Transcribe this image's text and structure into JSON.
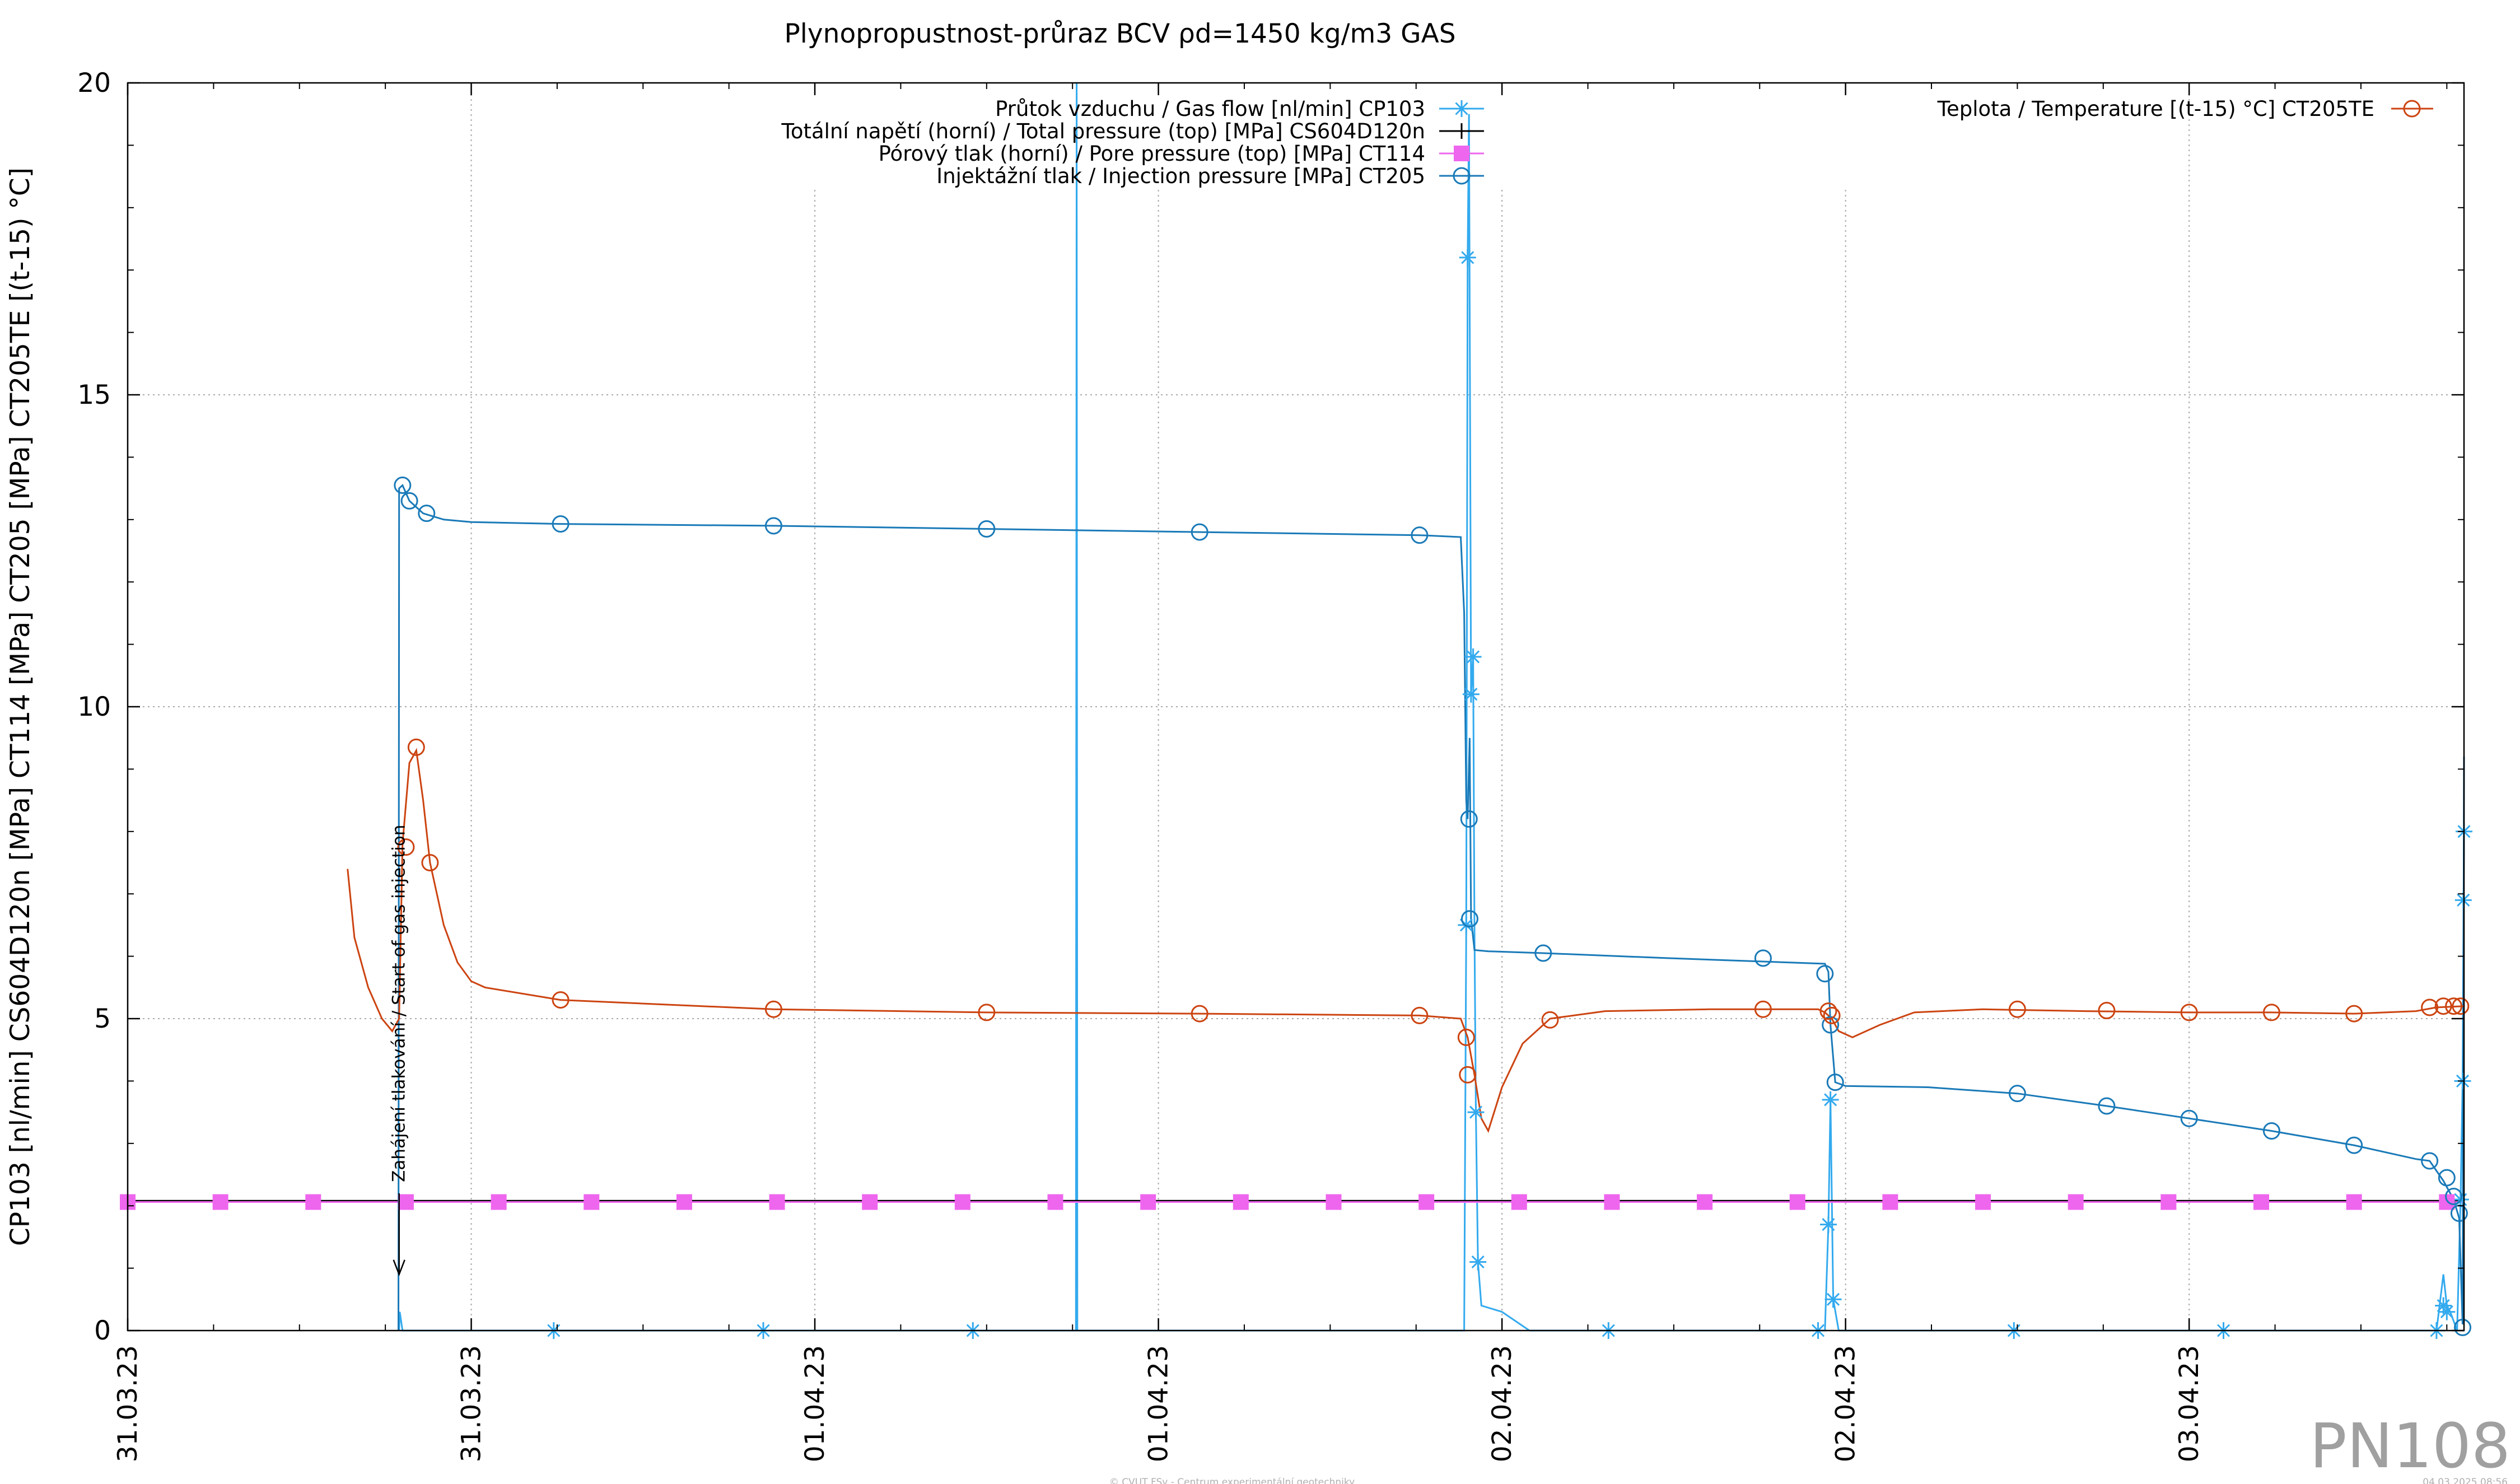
{
  "page": {
    "stamp": "PN108",
    "footer_left": "© CVUT FSv - Centrum experimentální geotechniky",
    "footer_right": "04.03.2025 08:56"
  },
  "chart_data": {
    "type": "line",
    "title": "Plynopropustnost-průraz BCV ρd=1450 kg/m3 GAS",
    "ylabel": "CP103 [nl/min] CS604D120n [MPa] CT114 [MPa] CT205 [MPa] CT205TE [(t-15) °C]",
    "xlabel": "",
    "ylim": [
      0,
      20
    ],
    "yticks": [
      0,
      5,
      10,
      15,
      20
    ],
    "xlim": [
      0,
      3.4
    ],
    "x_unit": "days from 31.03.23 00:00 (tick labels show dates)",
    "xticks": [
      {
        "x": 0.0,
        "label": "31.03.23"
      },
      {
        "x": 0.5,
        "label": "31.03.23"
      },
      {
        "x": 1.0,
        "label": "01.04.23"
      },
      {
        "x": 1.5,
        "label": "01.04.23"
      },
      {
        "x": 2.0,
        "label": "02.04.23"
      },
      {
        "x": 2.5,
        "label": "02.04.23"
      },
      {
        "x": 3.0,
        "label": "03.04.23"
      }
    ],
    "grid": true,
    "legend_left_position": "top-center",
    "legend_right_position": "top-right",
    "annotation": {
      "text": "Zahájení tlakování / Start of gas injection",
      "x": 0.395,
      "y_from": 2.2,
      "y_to": 0.9
    },
    "series": [
      {
        "name": "Průtok vzduchu / Gas flow [nl/min] CP103",
        "color": "#33aaee",
        "marker": "asterisk",
        "legend": "left",
        "points": [
          [
            0.395,
            0.0
          ],
          [
            0.396,
            0.3
          ],
          [
            0.4,
            0.0
          ],
          [
            1.38,
            0.0
          ],
          [
            1.381,
            20
          ],
          [
            1.382,
            0.0
          ],
          [
            1.945,
            0.0
          ],
          [
            1.948,
            6.5
          ],
          [
            1.95,
            17.2
          ],
          [
            1.952,
            19.5
          ],
          [
            1.955,
            10.2
          ],
          [
            1.958,
            10.8
          ],
          [
            1.96,
            6.4
          ],
          [
            1.962,
            3.5
          ],
          [
            1.965,
            1.1
          ],
          [
            1.97,
            0.4
          ],
          [
            2.0,
            0.3
          ],
          [
            2.04,
            0.0
          ],
          [
            2.47,
            0.0
          ],
          [
            2.475,
            1.7
          ],
          [
            2.478,
            3.7
          ],
          [
            2.482,
            0.5
          ],
          [
            2.49,
            0.0
          ],
          [
            3.36,
            0.0
          ],
          [
            3.37,
            0.9
          ],
          [
            3.375,
            0.4
          ],
          [
            3.38,
            0.3
          ],
          [
            3.39,
            0.0
          ],
          [
            3.395,
            2.1
          ],
          [
            3.398,
            4.0
          ],
          [
            3.4,
            8.0
          ]
        ],
        "markers": [
          [
            0.62,
            0.0
          ],
          [
            0.925,
            0.0
          ],
          [
            1.23,
            0.0
          ],
          [
            1.948,
            6.5
          ],
          [
            1.95,
            17.2
          ],
          [
            1.955,
            10.2
          ],
          [
            1.958,
            10.8
          ],
          [
            1.962,
            3.5
          ],
          [
            1.965,
            1.1
          ],
          [
            2.155,
            0.0
          ],
          [
            2.46,
            0.0
          ],
          [
            2.475,
            1.7
          ],
          [
            2.478,
            3.7
          ],
          [
            2.482,
            0.5
          ],
          [
            2.745,
            0.0
          ],
          [
            3.05,
            0.0
          ],
          [
            3.36,
            0.0
          ],
          [
            3.37,
            0.4
          ],
          [
            3.375,
            0.3
          ],
          [
            3.395,
            2.1
          ],
          [
            3.398,
            4.0
          ],
          [
            3.399,
            6.9
          ],
          [
            3.4,
            8.0
          ]
        ]
      },
      {
        "name": "Totální napětí (horní) / Total pressure (top) [MPa] CS604D120n",
        "color": "#000000",
        "marker": "plus",
        "legend": "left",
        "points": [
          [
            0.0,
            2.08
          ],
          [
            3.4,
            2.08
          ]
        ],
        "markers": []
      },
      {
        "name": "Pórový tlak (horní) / Pore pressure (top) [MPa] CT114",
        "color": "#ee66ee",
        "marker": "square",
        "legend": "left",
        "points": [
          [
            0.0,
            2.06
          ],
          [
            3.4,
            2.06
          ]
        ],
        "markers": [
          [
            0.0,
            2.06
          ],
          [
            0.135,
            2.06
          ],
          [
            0.27,
            2.06
          ],
          [
            0.405,
            2.06
          ],
          [
            0.54,
            2.06
          ],
          [
            0.675,
            2.06
          ],
          [
            0.81,
            2.06
          ],
          [
            0.945,
            2.06
          ],
          [
            1.08,
            2.06
          ],
          [
            1.215,
            2.06
          ],
          [
            1.35,
            2.06
          ],
          [
            1.485,
            2.06
          ],
          [
            1.62,
            2.06
          ],
          [
            1.755,
            2.06
          ],
          [
            1.89,
            2.06
          ],
          [
            2.025,
            2.06
          ],
          [
            2.16,
            2.06
          ],
          [
            2.295,
            2.06
          ],
          [
            2.43,
            2.06
          ],
          [
            2.565,
            2.06
          ],
          [
            2.7,
            2.06
          ],
          [
            2.835,
            2.06
          ],
          [
            2.97,
            2.06
          ],
          [
            3.105,
            2.06
          ],
          [
            3.24,
            2.06
          ],
          [
            3.375,
            2.06
          ]
        ]
      },
      {
        "name": "Injektážní tlak / Injection pressure [MPa] CT205",
        "color": "#1a7ab8",
        "marker": "circle",
        "legend": "left",
        "points": [
          [
            0.394,
            0.0
          ],
          [
            0.395,
            13.5
          ],
          [
            0.4,
            13.55
          ],
          [
            0.41,
            13.3
          ],
          [
            0.43,
            13.1
          ],
          [
            0.46,
            13.0
          ],
          [
            0.5,
            12.96
          ],
          [
            0.63,
            12.93
          ],
          [
            0.94,
            12.9
          ],
          [
            1.25,
            12.85
          ],
          [
            1.56,
            12.8
          ],
          [
            1.88,
            12.75
          ],
          [
            1.94,
            12.72
          ],
          [
            1.945,
            11.5
          ],
          [
            1.948,
            8.5
          ],
          [
            1.95,
            8.2
          ],
          [
            1.953,
            9.5
          ],
          [
            1.955,
            6.6
          ],
          [
            1.96,
            6.1
          ],
          [
            1.98,
            6.08
          ],
          [
            2.06,
            6.05
          ],
          [
            2.24,
            5.97
          ],
          [
            2.47,
            5.88
          ],
          [
            2.475,
            5.75
          ],
          [
            2.478,
            4.9
          ],
          [
            2.485,
            3.98
          ],
          [
            2.5,
            3.92
          ],
          [
            2.62,
            3.9
          ],
          [
            2.75,
            3.8
          ],
          [
            2.88,
            3.6
          ],
          [
            3.0,
            3.4
          ],
          [
            3.12,
            3.2
          ],
          [
            3.24,
            2.97
          ],
          [
            3.33,
            2.75
          ],
          [
            3.35,
            2.72
          ],
          [
            3.37,
            2.4
          ],
          [
            3.385,
            2.1
          ],
          [
            3.393,
            1.8
          ],
          [
            3.398,
            0.1
          ],
          [
            3.4,
            9.2
          ]
        ],
        "markers": [
          [
            0.4,
            13.55
          ],
          [
            0.41,
            13.3
          ],
          [
            0.435,
            13.1
          ],
          [
            0.63,
            12.93
          ],
          [
            0.94,
            12.9
          ],
          [
            1.25,
            12.85
          ],
          [
            1.56,
            12.8
          ],
          [
            1.88,
            12.75
          ],
          [
            1.952,
            8.2
          ],
          [
            1.953,
            6.6
          ],
          [
            2.06,
            6.05
          ],
          [
            2.38,
            5.97
          ],
          [
            2.47,
            5.72
          ],
          [
            2.478,
            4.9
          ],
          [
            2.485,
            3.98
          ],
          [
            2.75,
            3.8
          ],
          [
            2.88,
            3.6
          ],
          [
            3.0,
            3.4
          ],
          [
            3.12,
            3.2
          ],
          [
            3.24,
            2.97
          ],
          [
            3.35,
            2.72
          ],
          [
            3.375,
            2.45
          ],
          [
            3.385,
            2.15
          ],
          [
            3.393,
            1.88
          ],
          [
            3.398,
            0.05
          ]
        ]
      },
      {
        "name": "Teplota / Temperature [(t-15) °C] CT205TE",
        "color": "#cc4411",
        "marker": "circle",
        "legend": "right",
        "points": [
          [
            0.32,
            7.4
          ],
          [
            0.33,
            6.3
          ],
          [
            0.35,
            5.5
          ],
          [
            0.37,
            5.0
          ],
          [
            0.385,
            4.8
          ],
          [
            0.395,
            5.0
          ],
          [
            0.4,
            7.8
          ],
          [
            0.41,
            9.1
          ],
          [
            0.42,
            9.3
          ],
          [
            0.43,
            8.5
          ],
          [
            0.44,
            7.5
          ],
          [
            0.46,
            6.5
          ],
          [
            0.48,
            5.9
          ],
          [
            0.5,
            5.6
          ],
          [
            0.52,
            5.5
          ],
          [
            0.63,
            5.3
          ],
          [
            0.94,
            5.15
          ],
          [
            1.25,
            5.1
          ],
          [
            1.56,
            5.08
          ],
          [
            1.88,
            5.05
          ],
          [
            1.94,
            5.0
          ],
          [
            1.95,
            4.7
          ],
          [
            1.96,
            4.1
          ],
          [
            1.97,
            3.4
          ],
          [
            1.98,
            3.2
          ],
          [
            2.0,
            3.9
          ],
          [
            2.03,
            4.6
          ],
          [
            2.07,
            5.0
          ],
          [
            2.15,
            5.12
          ],
          [
            2.3,
            5.15
          ],
          [
            2.46,
            5.15
          ],
          [
            2.47,
            5.1
          ],
          [
            2.48,
            5.0
          ],
          [
            2.49,
            4.8
          ],
          [
            2.51,
            4.7
          ],
          [
            2.55,
            4.9
          ],
          [
            2.6,
            5.1
          ],
          [
            2.7,
            5.15
          ],
          [
            2.85,
            5.12
          ],
          [
            3.0,
            5.1
          ],
          [
            3.12,
            5.1
          ],
          [
            3.24,
            5.08
          ],
          [
            3.33,
            5.12
          ],
          [
            3.36,
            5.18
          ],
          [
            3.4,
            5.2
          ]
        ],
        "markers": [
          [
            0.405,
            7.75
          ],
          [
            0.42,
            9.35
          ],
          [
            0.44,
            7.5
          ],
          [
            0.63,
            5.3
          ],
          [
            0.94,
            5.15
          ],
          [
            1.25,
            5.1
          ],
          [
            1.56,
            5.08
          ],
          [
            1.88,
            5.05
          ],
          [
            1.948,
            4.7
          ],
          [
            1.95,
            4.1
          ],
          [
            2.07,
            4.98
          ],
          [
            2.38,
            5.15
          ],
          [
            2.475,
            5.12
          ],
          [
            2.48,
            5.05
          ],
          [
            2.75,
            5.15
          ],
          [
            2.88,
            5.13
          ],
          [
            3.0,
            5.1
          ],
          [
            3.12,
            5.1
          ],
          [
            3.24,
            5.08
          ],
          [
            3.35,
            5.18
          ],
          [
            3.37,
            5.2
          ],
          [
            3.385,
            5.2
          ],
          [
            3.395,
            5.2
          ]
        ]
      }
    ]
  }
}
